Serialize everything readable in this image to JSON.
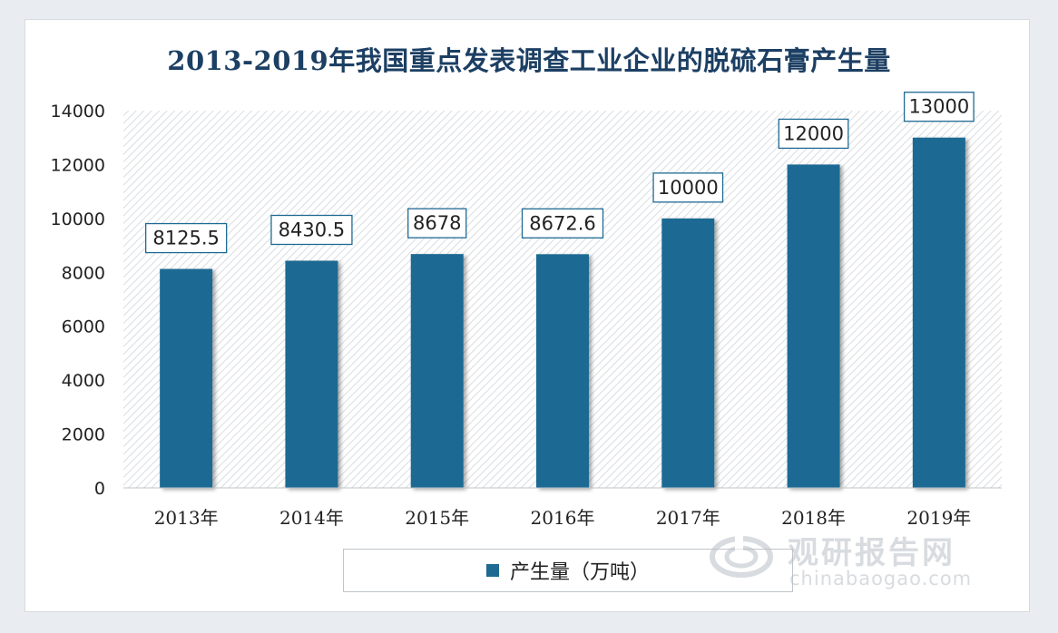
{
  "chart_data": {
    "type": "bar",
    "title": "2013-2019年我国重点发表调查工业企业的脱硫石膏产生量",
    "categories": [
      "2013年",
      "2014年",
      "2015年",
      "2016年",
      "2017年",
      "2018年",
      "2019年"
    ],
    "series": [
      {
        "name": "产生量（万吨）",
        "values": [
          8125.5,
          8430.5,
          8678,
          8672.6,
          10000,
          12000,
          13000
        ]
      }
    ],
    "data_labels": [
      "8125.5",
      "8430.5",
      "8678",
      "8672.6",
      "10000",
      "12000",
      "13000"
    ],
    "y_ticks": [
      0,
      2000,
      4000,
      6000,
      8000,
      10000,
      12000,
      14000
    ],
    "ylim": [
      0,
      14000
    ],
    "xlabel": "",
    "ylabel": "",
    "legend_position": "bottom",
    "bar_color": "#1e6a93"
  },
  "watermark": {
    "cn": "观研报告网",
    "en": "chinabaogao.com"
  }
}
